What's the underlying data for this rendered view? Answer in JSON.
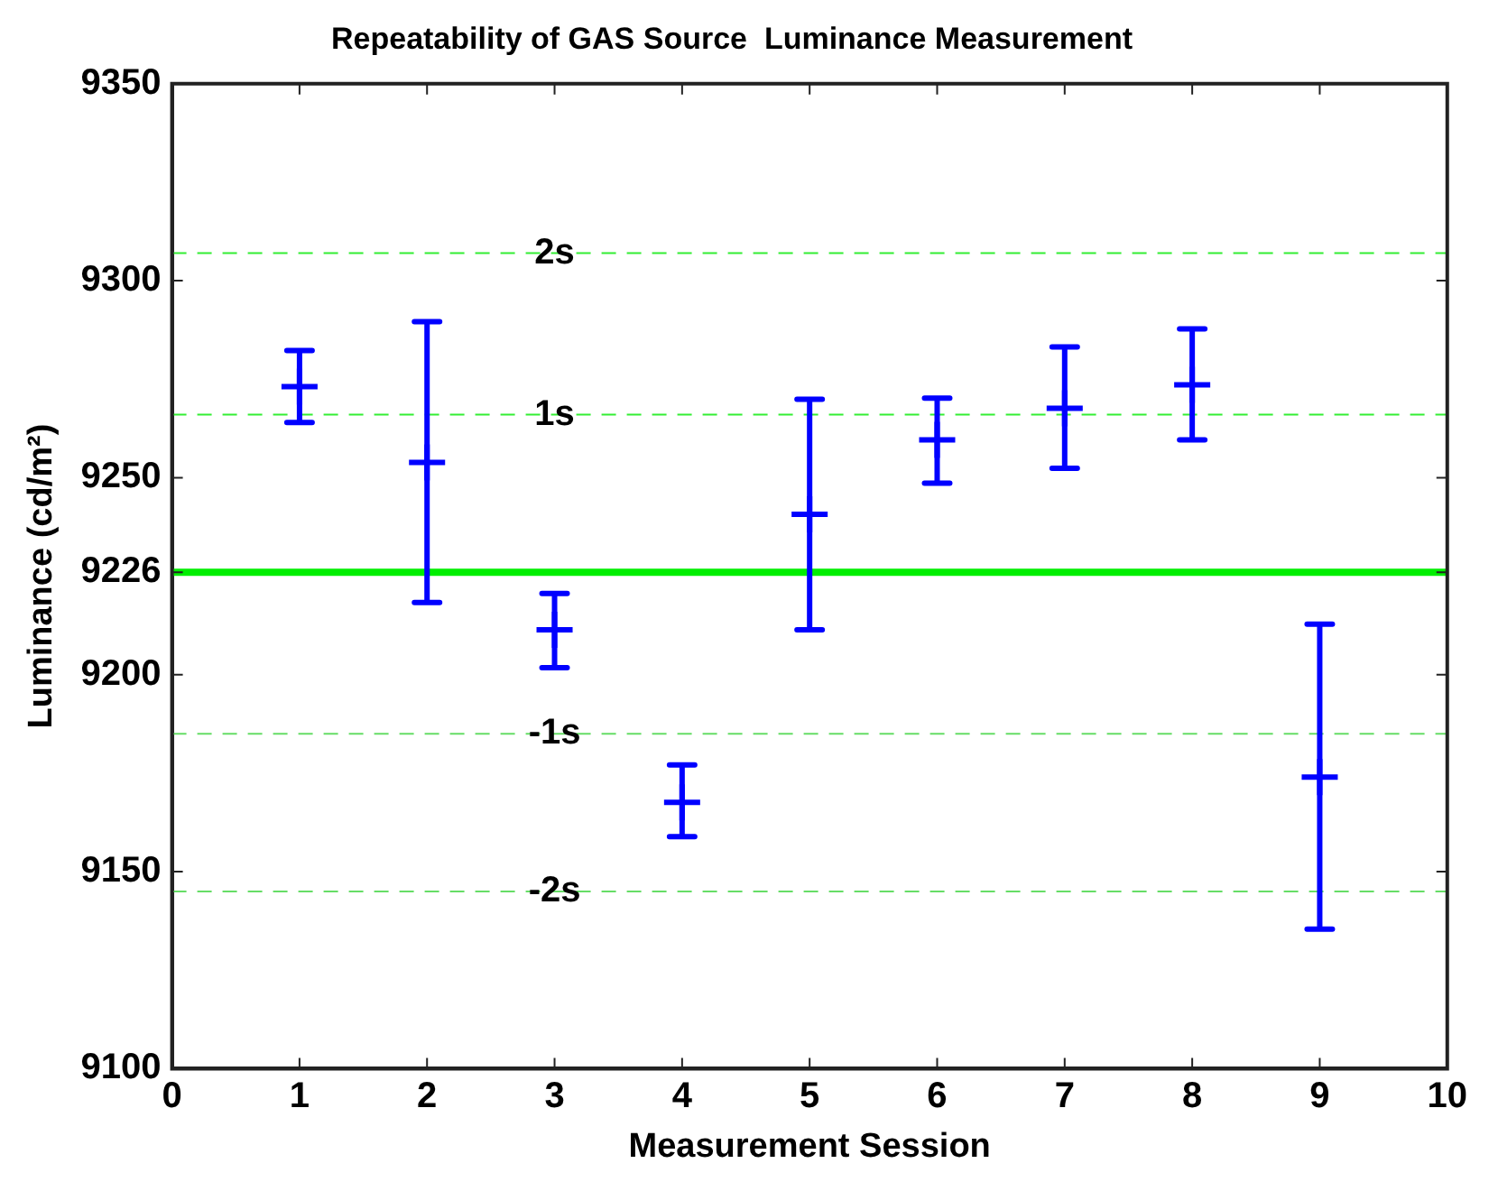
{
  "chart_data": {
    "type": "scatter",
    "title": "Repeatability of GAS Source  Luminance Measurement",
    "xlabel": "Measurement Session",
    "ylabel": "Luminance (cd/m²)",
    "x": [
      1,
      2,
      3,
      4,
      5,
      6,
      7,
      8,
      9
    ],
    "series": [
      {
        "color": "#0000ff",
        "values": [
          9273.1,
          9253.9,
          9211.4,
          9167.6,
          9240.7,
          9259.6,
          9267.6,
          9273.6,
          9174
        ],
        "errors": [
          [
            9264,
            9282.3
          ],
          [
            9218.3,
            9289.6
          ],
          [
            9201.8,
            9220.6
          ],
          [
            9158.9,
            9177.1
          ],
          [
            9211.4,
            9269.9
          ],
          [
            9248.6,
            9270.2
          ],
          [
            9252.4,
            9283.2
          ],
          [
            9259.6,
            9287.8
          ],
          [
            9135.4,
            9212.8
          ]
        ]
      }
    ],
    "xlim": [
      0,
      10
    ],
    "xticks": [
      0,
      1,
      2,
      3,
      4,
      5,
      6,
      7,
      8,
      9,
      10
    ],
    "ylim": [
      9100,
      9350
    ],
    "yticks": [
      9100,
      9150,
      9200,
      9226,
      9250,
      9300,
      9350
    ],
    "ref_lines": [
      {
        "axis": "y",
        "value": 9226,
        "color": "#00ee00",
        "line_style": "solid"
      },
      {
        "axis": "y",
        "value": 9307,
        "label": "2s",
        "color": "#33ee33",
        "line_style": "dashed"
      },
      {
        "axis": "y",
        "value": 9266,
        "label": "1s",
        "color": "#33ee33",
        "line_style": "dashed"
      },
      {
        "axis": "y",
        "value": 9185,
        "label": "-1s",
        "color": "#66dd66",
        "line_style": "dashed"
      },
      {
        "axis": "y",
        "value": 9145,
        "label": "-2s",
        "color": "#66dd66",
        "line_style": "dashed"
      }
    ],
    "grid": false,
    "legend": false,
    "marker": "cross"
  }
}
